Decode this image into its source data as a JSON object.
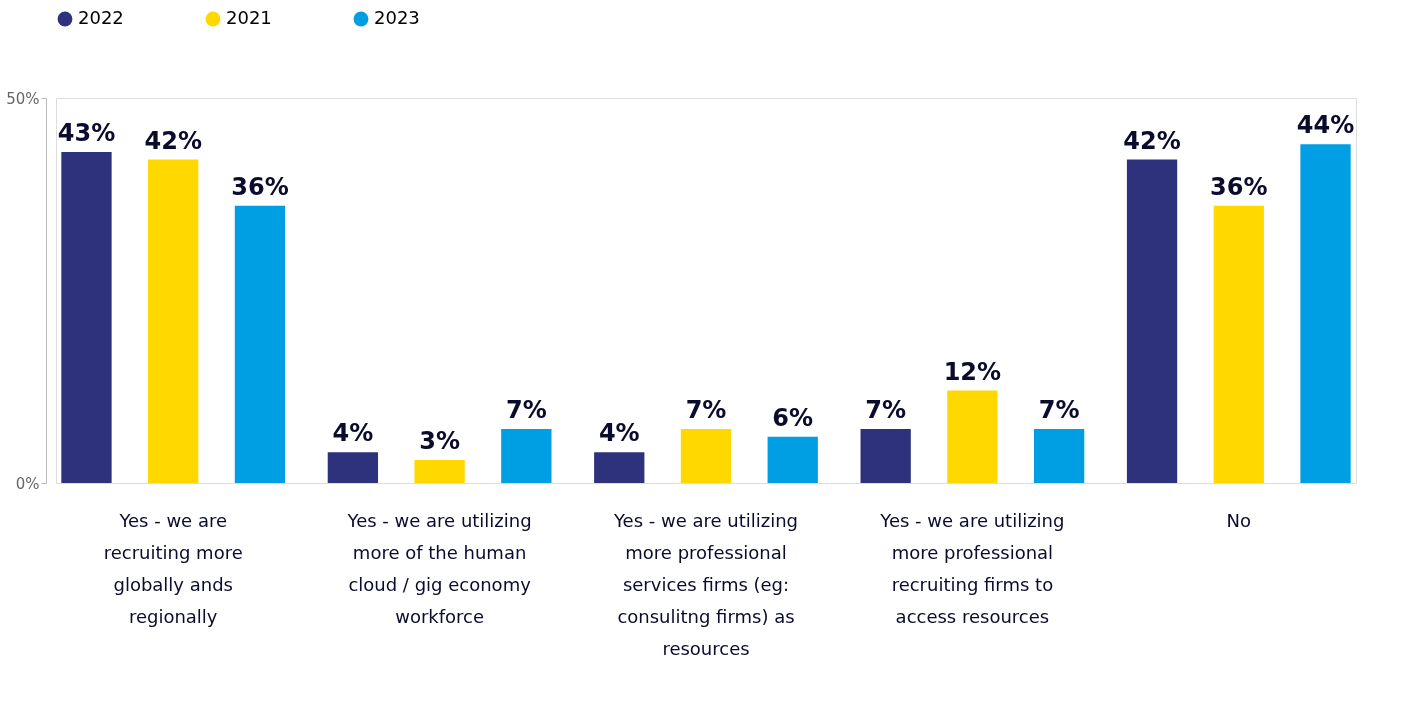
{
  "chart_data": {
    "type": "bar",
    "categories": [
      "Yes - we are recruiting more globally ands regionally",
      "Yes - we are utilizing more of the human cloud / gig economy workforce",
      "Yes - we are utilizing more professional services firms (eg: consulitng firms) as resources",
      "Yes - we are utilizing more professional recruiting firms to access resources",
      "No"
    ],
    "series": [
      {
        "name": "2022",
        "color": "#2e327d",
        "values": [
          43,
          4,
          4,
          7,
          42
        ],
        "value_labels": [
          "43%",
          "4%",
          "4%",
          "7%",
          "42%"
        ]
      },
      {
        "name": "2021",
        "color": "#ffd800",
        "values": [
          42,
          3,
          7,
          12,
          36
        ],
        "value_labels": [
          "42%",
          "3%",
          "7%",
          "12%",
          "36%"
        ]
      },
      {
        "name": "2023",
        "color": "#009fe3",
        "values": [
          36,
          7,
          6,
          7,
          44
        ],
        "value_labels": [
          "36%",
          "7%",
          "6%",
          "7%",
          "44%"
        ]
      }
    ],
    "ylim": [
      0,
      50
    ],
    "yticks": [
      {
        "value": 0,
        "label": "0%"
      },
      {
        "value": 50,
        "label": "50%"
      }
    ],
    "legend": "top"
  }
}
